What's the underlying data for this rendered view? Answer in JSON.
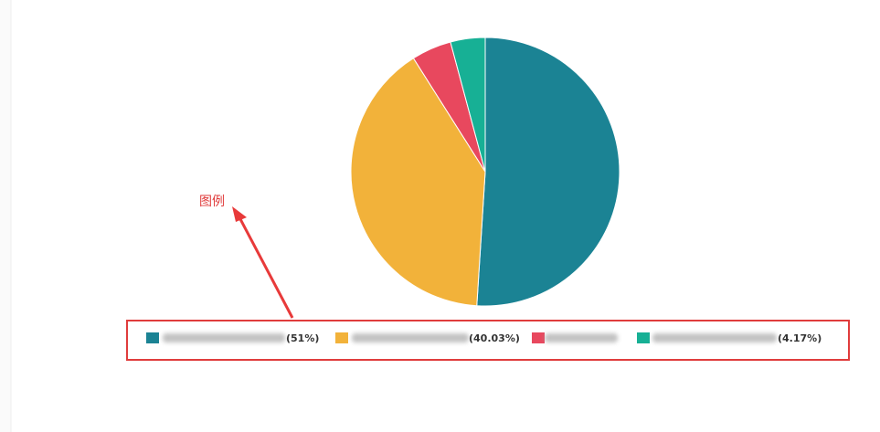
{
  "chart_data": {
    "type": "pie",
    "categories": [
      null,
      null,
      null,
      null
    ],
    "values": [
      51,
      40.03,
      4.8,
      4.17
    ],
    "value_labels": [
      "(51%)",
      "(40.03%)",
      null,
      "(4.17%)"
    ],
    "colors": [
      "#1b8394",
      "#f2b23a",
      "#e8485e",
      "#17b095"
    ]
  },
  "annotation": "图例"
}
